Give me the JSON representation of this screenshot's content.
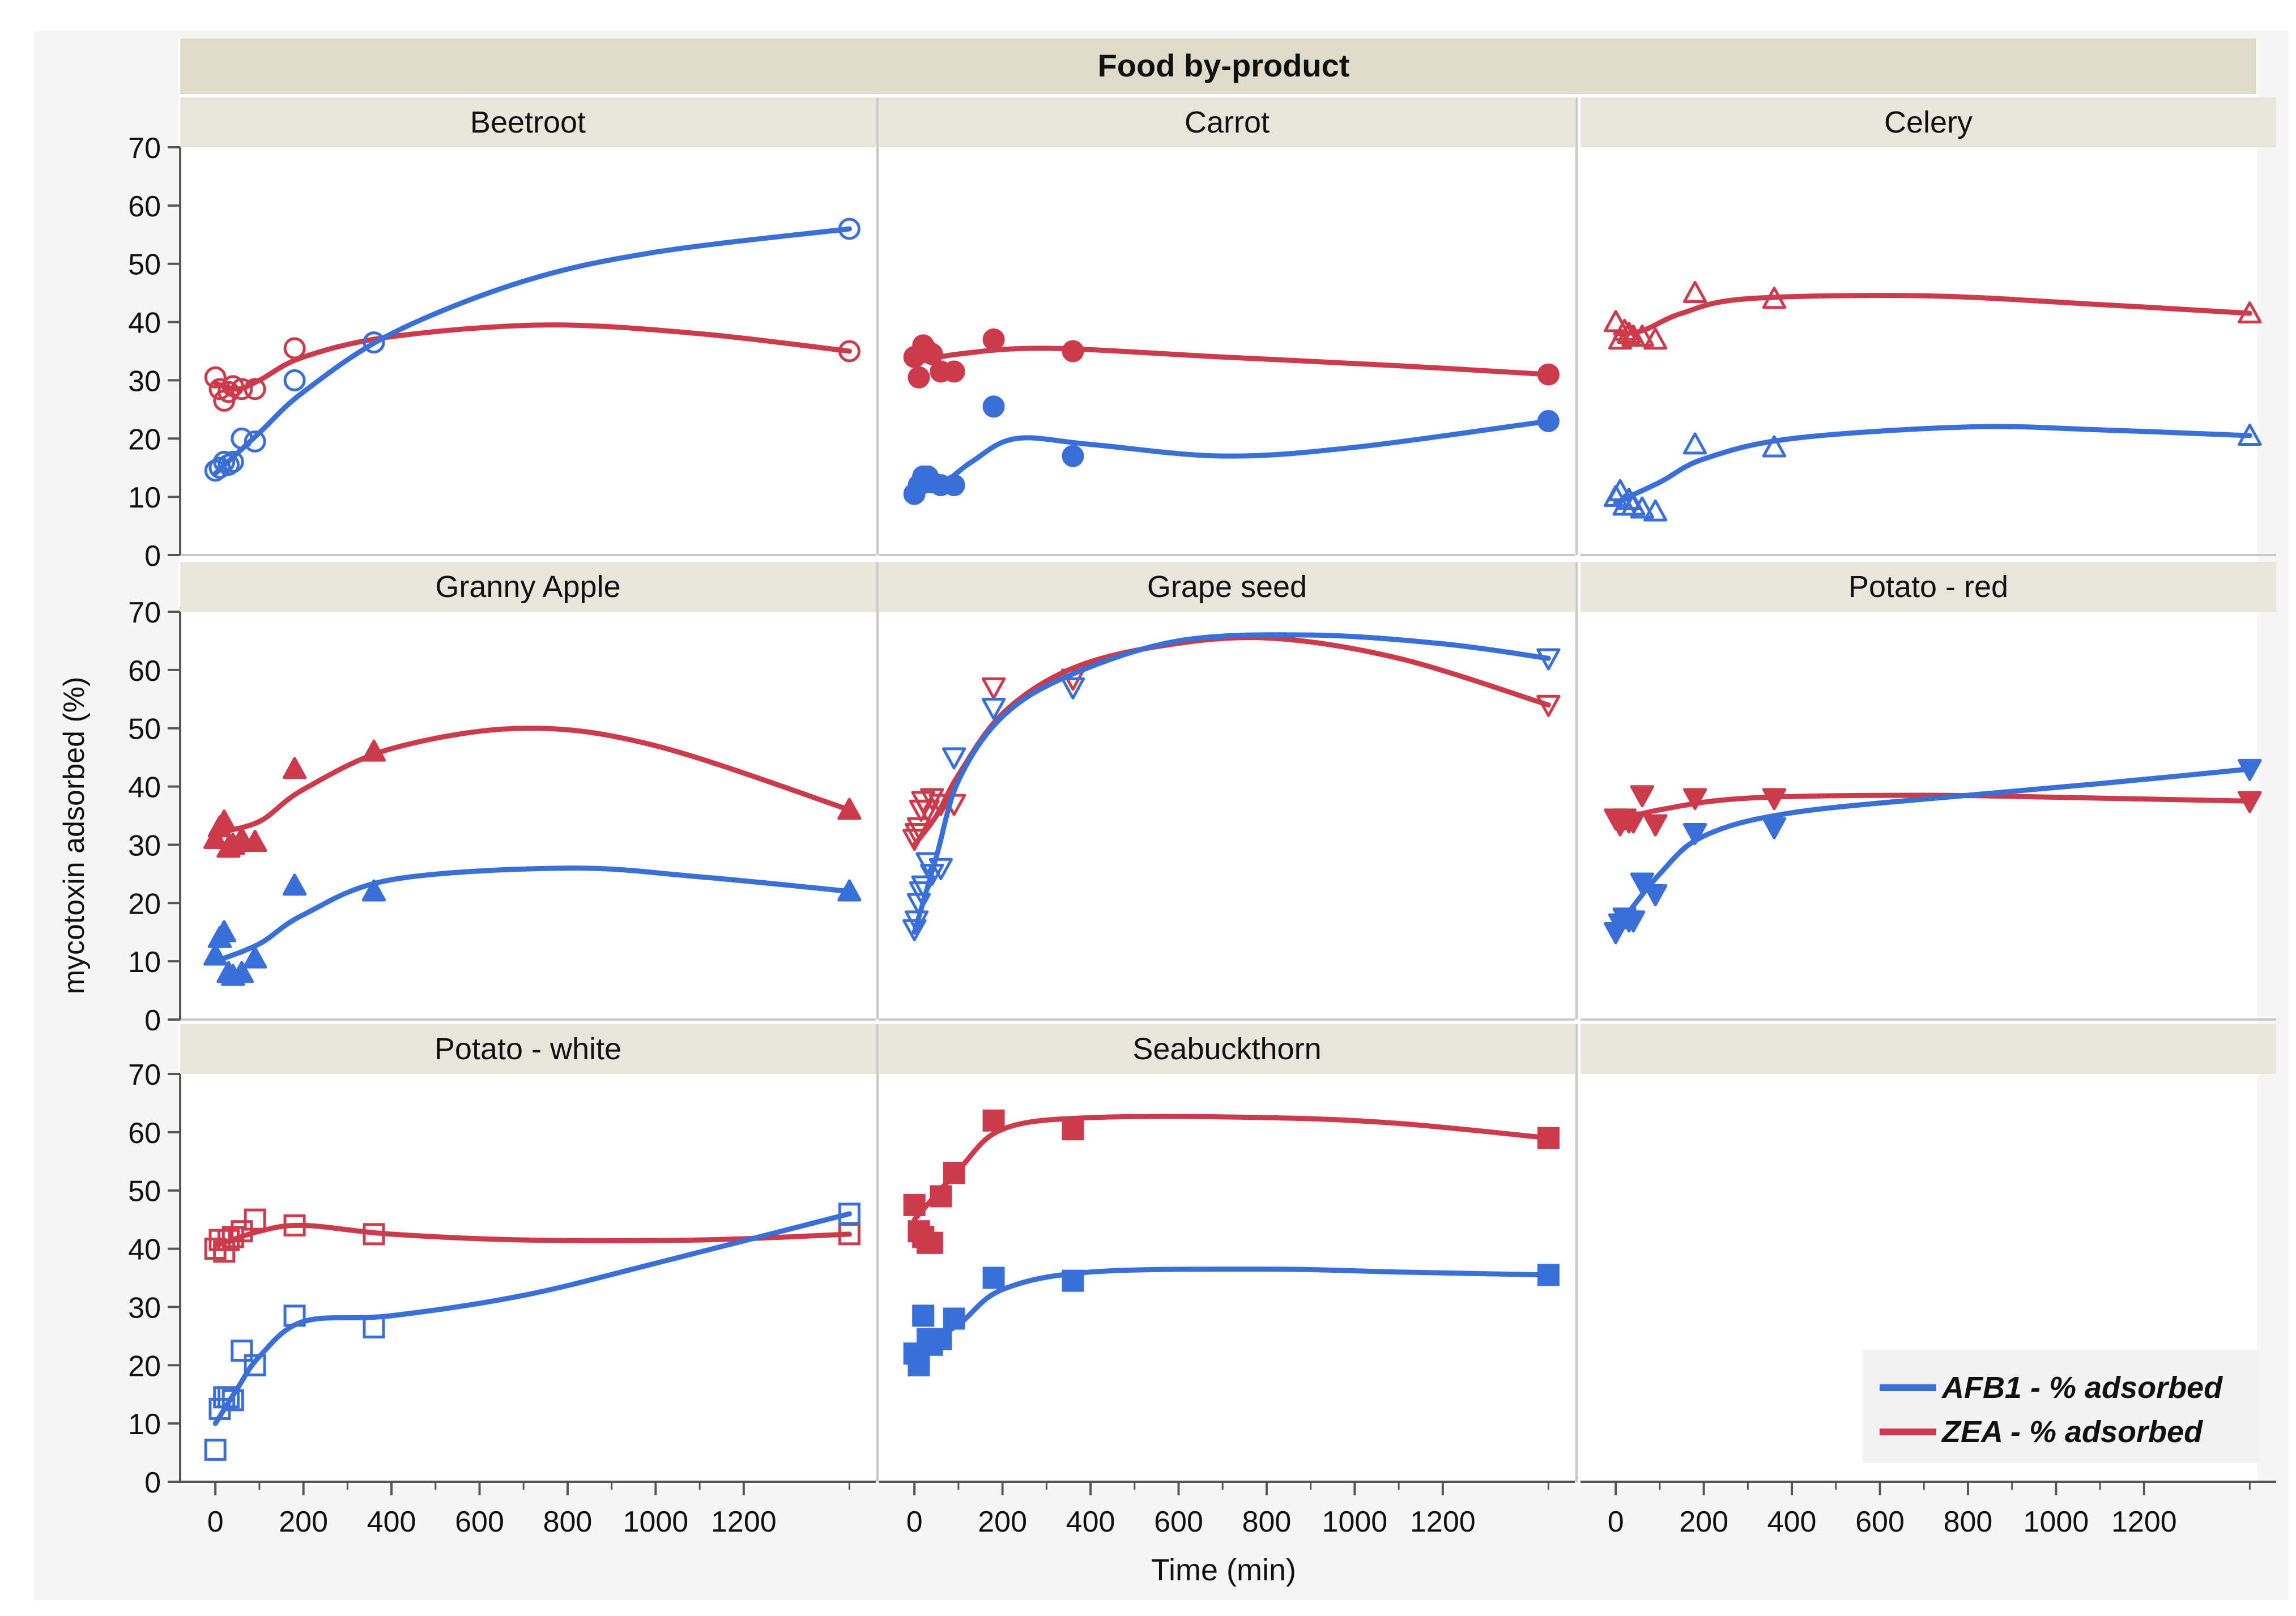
{
  "chart_data": {
    "type": "scatter",
    "overall_title": "Food by-product",
    "ylabel": "mycotoxin adsorbed (%)",
    "xlabel": "Time (min)",
    "xlim": [
      -80,
      1500
    ],
    "ylim": [
      0,
      70
    ],
    "x_ticks": [
      0,
      200,
      400,
      600,
      800,
      1000,
      1200
    ],
    "y_ticks": [
      0,
      10,
      20,
      30,
      40,
      50,
      60,
      70
    ],
    "legend": [
      {
        "name": "AFB1 - % adsorbed",
        "color": "#3a6fd8"
      },
      {
        "name": "ZEA - % adsorbed",
        "color": "#cc3b4c"
      }
    ],
    "colors": {
      "afb1": "#3a6fd8",
      "zea": "#cc3b4c",
      "header_bg": "#e8e6dc",
      "title_bg": "#dedbc9",
      "border": "#c8c8c8",
      "page_bg": "#f5f5f5"
    },
    "panels": [
      {
        "name": "Beetroot",
        "marker": "circle-open",
        "afb1": {
          "x": [
            0,
            10,
            20,
            30,
            40,
            60,
            90,
            180,
            360,
            1440
          ],
          "y": [
            14.5,
            15,
            16,
            15.5,
            16,
            20,
            19.5,
            30,
            36.5,
            56
          ],
          "curve": [
            [
              0,
              14
            ],
            [
              100,
              21
            ],
            [
              200,
              28
            ],
            [
              400,
              38
            ],
            [
              700,
              47
            ],
            [
              1000,
              52
            ],
            [
              1440,
              56
            ]
          ]
        },
        "zea": {
          "x": [
            0,
            10,
            20,
            30,
            40,
            60,
            90,
            180,
            360,
            1440
          ],
          "y": [
            30.5,
            28.5,
            26.5,
            28,
            29,
            28.5,
            28.5,
            35.5,
            36.5,
            35
          ],
          "curve": [
            [
              0,
              29.5
            ],
            [
              50,
              28.5
            ],
            [
              100,
              30
            ],
            [
              200,
              34
            ],
            [
              400,
              37.5
            ],
            [
              750,
              39.5
            ],
            [
              1100,
              38
            ],
            [
              1440,
              35
            ]
          ]
        }
      },
      {
        "name": "Carrot",
        "marker": "circle-filled",
        "afb1": {
          "x": [
            0,
            10,
            20,
            30,
            40,
            60,
            90,
            180,
            360,
            1440
          ],
          "y": [
            10.5,
            12,
            13.5,
            13.5,
            12.5,
            12,
            12,
            25.5,
            17,
            23
          ],
          "curve": [
            [
              0,
              10.5
            ],
            [
              60,
              12
            ],
            [
              130,
              16
            ],
            [
              230,
              20
            ],
            [
              400,
              19
            ],
            [
              700,
              17
            ],
            [
              1000,
              18.5
            ],
            [
              1440,
              23
            ]
          ]
        },
        "zea": {
          "x": [
            0,
            10,
            20,
            30,
            40,
            60,
            90,
            180,
            360,
            1440
          ],
          "y": [
            34,
            30.5,
            36,
            35,
            34.5,
            31.5,
            31.5,
            37,
            35,
            31
          ],
          "curve": [
            [
              0,
              33
            ],
            [
              100,
              34.5
            ],
            [
              300,
              35.5
            ],
            [
              700,
              34
            ],
            [
              1100,
              32.5
            ],
            [
              1440,
              31
            ]
          ]
        }
      },
      {
        "name": "Celery",
        "marker": "triangle-open",
        "afb1": {
          "x": [
            0,
            10,
            20,
            30,
            40,
            60,
            90,
            180,
            360,
            1440
          ],
          "y": [
            10,
            11,
            8.5,
            9.5,
            8.5,
            8,
            7.5,
            19,
            18.5,
            20.5
          ],
          "curve": [
            [
              0,
              9
            ],
            [
              100,
              12.5
            ],
            [
              200,
              16.5
            ],
            [
              400,
              20
            ],
            [
              800,
              22
            ],
            [
              1100,
              21.5
            ],
            [
              1440,
              20.5
            ]
          ]
        },
        "zea": {
          "x": [
            0,
            10,
            20,
            30,
            40,
            60,
            90,
            180,
            360,
            1440
          ],
          "y": [
            40,
            37,
            38.5,
            38,
            37.5,
            37.5,
            37,
            45,
            44,
            41.5
          ],
          "curve": [
            [
              0,
              38
            ],
            [
              60,
              38.5
            ],
            [
              150,
              41.5
            ],
            [
              300,
              44
            ],
            [
              700,
              44.5
            ],
            [
              1100,
              43
            ],
            [
              1440,
              41.5
            ]
          ]
        }
      },
      {
        "name": "Granny Apple",
        "marker": "triangle-filled",
        "afb1": {
          "x": [
            0,
            10,
            20,
            30,
            40,
            60,
            90,
            180,
            360,
            1440
          ],
          "y": [
            11,
            14,
            15,
            8,
            7.5,
            8,
            10.5,
            23,
            22,
            22
          ],
          "curve": [
            [
              0,
              10
            ],
            [
              100,
              13
            ],
            [
              200,
              18
            ],
            [
              400,
              24
            ],
            [
              800,
              26
            ],
            [
              1100,
              24.5
            ],
            [
              1440,
              22
            ]
          ]
        },
        "zea": {
          "x": [
            0,
            10,
            20,
            30,
            40,
            60,
            90,
            180,
            360,
            1440
          ],
          "y": [
            31,
            33,
            34,
            29.5,
            30,
            31,
            30.5,
            43,
            46,
            36
          ],
          "curve": [
            [
              0,
              32
            ],
            [
              100,
              34
            ],
            [
              200,
              39.5
            ],
            [
              400,
              46.5
            ],
            [
              700,
              50
            ],
            [
              1000,
              47
            ],
            [
              1440,
              36
            ]
          ]
        }
      },
      {
        "name": "Grape seed",
        "marker": "triangle-down-open",
        "afb1": {
          "x": [
            0,
            5,
            10,
            15,
            20,
            30,
            40,
            60,
            90,
            180,
            360,
            1440
          ],
          "y": [
            15.5,
            17,
            20,
            22,
            23,
            27,
            25,
            26,
            45,
            53.5,
            57,
            62
          ],
          "curve": [
            [
              0,
              15
            ],
            [
              50,
              28
            ],
            [
              100,
              41
            ],
            [
              200,
              52
            ],
            [
              350,
              59
            ],
            [
              600,
              65
            ],
            [
              900,
              66
            ],
            [
              1200,
              64.5
            ],
            [
              1440,
              62
            ]
          ]
        },
        "zea": {
          "x": [
            0,
            5,
            10,
            15,
            20,
            30,
            40,
            60,
            90,
            180,
            360,
            1440
          ],
          "y": [
            31,
            32,
            33,
            36,
            37.5,
            36,
            38,
            37,
            37,
            57,
            58.5,
            54
          ],
          "curve": [
            [
              0,
              30
            ],
            [
              50,
              35
            ],
            [
              100,
              42
            ],
            [
              200,
              52.5
            ],
            [
              350,
              60
            ],
            [
              550,
              64
            ],
            [
              800,
              65.5
            ],
            [
              1100,
              62
            ],
            [
              1440,
              54
            ]
          ]
        }
      },
      {
        "name": "Potato - red",
        "marker": "triangle-down-filled",
        "afb1": {
          "x": [
            0,
            10,
            20,
            30,
            40,
            60,
            90,
            180,
            360,
            1440
          ],
          "y": [
            15,
            16.5,
            17.5,
            17,
            17,
            23.5,
            21.5,
            32,
            33,
            43
          ],
          "curve": [
            [
              0,
              15.5
            ],
            [
              100,
              25
            ],
            [
              200,
              31.5
            ],
            [
              400,
              35.5
            ],
            [
              800,
              38.5
            ],
            [
              1100,
              40.5
            ],
            [
              1440,
              43
            ]
          ]
        },
        "zea": {
          "x": [
            0,
            10,
            20,
            30,
            40,
            60,
            90,
            180,
            360,
            1440
          ],
          "y": [
            34.5,
            33.5,
            34.5,
            34,
            34,
            38.5,
            33.5,
            38,
            38,
            37.5
          ],
          "curve": [
            [
              0,
              34
            ],
            [
              100,
              36
            ],
            [
              300,
              38
            ],
            [
              700,
              38.5
            ],
            [
              1100,
              38
            ],
            [
              1440,
              37.5
            ]
          ]
        }
      },
      {
        "name": "Potato - white",
        "marker": "square-open",
        "afb1": {
          "x": [
            0,
            10,
            20,
            30,
            40,
            60,
            90,
            180,
            360,
            1440
          ],
          "y": [
            5.5,
            12.5,
            14.5,
            14.5,
            14,
            22.5,
            20,
            28.5,
            26.5,
            46
          ],
          "curve": [
            [
              0,
              10
            ],
            [
              50,
              16
            ],
            [
              100,
              21.5
            ],
            [
              200,
              27.5
            ],
            [
              400,
              28.5
            ],
            [
              700,
              32
            ],
            [
              1000,
              37.5
            ],
            [
              1440,
              46
            ]
          ]
        },
        "zea": {
          "x": [
            0,
            10,
            20,
            30,
            40,
            60,
            90,
            180,
            360,
            1440
          ],
          "y": [
            40,
            41.5,
            39.5,
            41.5,
            42,
            43,
            45,
            44,
            42.5,
            42.5
          ],
          "curve": [
            [
              0,
              40.5
            ],
            [
              100,
              43
            ],
            [
              200,
              44
            ],
            [
              400,
              42.5
            ],
            [
              700,
              41.5
            ],
            [
              1100,
              41.5
            ],
            [
              1440,
              42.5
            ]
          ]
        }
      },
      {
        "name": "Seabuckthorn",
        "marker": "square-filled",
        "afb1": {
          "x": [
            0,
            10,
            20,
            30,
            40,
            60,
            90,
            180,
            360,
            1440
          ],
          "y": [
            22,
            20,
            28.5,
            24.5,
            23.5,
            24.5,
            28,
            35,
            34.5,
            35.5
          ],
          "curve": [
            [
              0,
              22.5
            ],
            [
              100,
              27
            ],
            [
              200,
              33
            ],
            [
              400,
              36
            ],
            [
              800,
              36.5
            ],
            [
              1100,
              36
            ],
            [
              1440,
              35.5
            ]
          ]
        },
        "zea": {
          "x": [
            0,
            10,
            20,
            30,
            40,
            60,
            90,
            180,
            360,
            1440
          ],
          "y": [
            47.5,
            43,
            42,
            41,
            41,
            49,
            53,
            62,
            60.5,
            59
          ],
          "curve": [
            [
              0,
              45
            ],
            [
              100,
              53.5
            ],
            [
              200,
              60.5
            ],
            [
              400,
              62.5
            ],
            [
              800,
              62.5
            ],
            [
              1100,
              61.5
            ],
            [
              1440,
              59
            ]
          ]
        }
      }
    ]
  }
}
